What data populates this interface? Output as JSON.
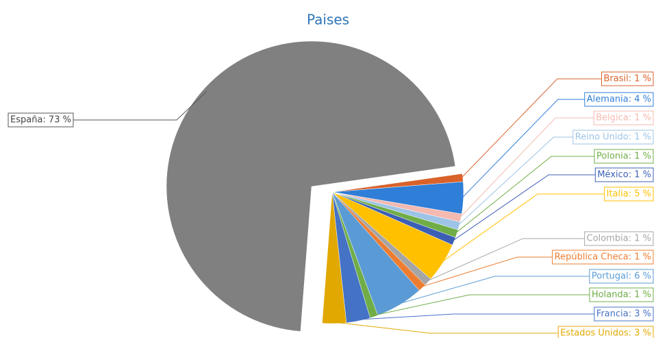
{
  "chart_data": {
    "type": "pie",
    "title": "Paises",
    "values": [
      1,
      4,
      1,
      1,
      1,
      1,
      5,
      1,
      1,
      6,
      1,
      3,
      3,
      73
    ],
    "value_labels": [
      "Brasil: 1 %",
      "Alemania: 4 %",
      "Belgica: 1 %",
      "Reino Unido: 1 %",
      "Polonia: 1 %",
      "México: 1 %",
      "Italia: 5 %",
      "Colombia: 1 %",
      "República Checa: 1 %",
      "Portugal: 6 %",
      "Holanda: 1 %",
      "Francia: 3 %",
      "Estados Unidos: 3 %",
      "España: 73 %"
    ],
    "colors": [
      "#d9622b",
      "#2f7ed8",
      "#f4b9b0",
      "#9dc3e6",
      "#70ad47",
      "#3c5fb5",
      "#ffc000",
      "#a5a5a5",
      "#ed7d31",
      "#5b9bd5",
      "#70ad47",
      "#4472c4",
      "#e0a800",
      "#808080"
    ]
  }
}
